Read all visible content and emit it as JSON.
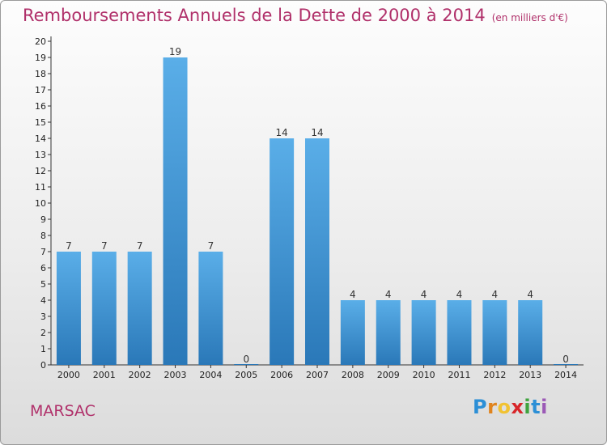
{
  "header": {
    "title": "Remboursements Annuels de la Dette de 2000 à 2014",
    "subtitle": "(en milliers d'€)"
  },
  "footer": {
    "commune": "MARSAC",
    "logo": [
      "P",
      "r",
      "o",
      "x",
      "i",
      "t",
      "i"
    ]
  },
  "colors": {
    "title": "#b0306a",
    "bar_light": "#5aaee8",
    "bar_dark": "#2a78b8"
  },
  "chart_data": {
    "type": "bar",
    "title": "Remboursements Annuels de la Dette de 2000 à 2014",
    "subtitle": "(en milliers d'€)",
    "categories": [
      "2000",
      "2001",
      "2002",
      "2003",
      "2004",
      "2005",
      "2006",
      "2007",
      "2008",
      "2009",
      "2010",
      "2011",
      "2012",
      "2013",
      "2014"
    ],
    "values": [
      7,
      7,
      7,
      19,
      7,
      0,
      14,
      14,
      4,
      4,
      4,
      4,
      4,
      4,
      0
    ],
    "data_labels": [
      "7",
      "7",
      "7",
      "19",
      "7",
      "0",
      "14",
      "14",
      "4",
      "4",
      "4",
      "4",
      "4",
      "4",
      "0"
    ],
    "ylim": [
      0,
      20
    ],
    "yticks": [
      0,
      1,
      2,
      3,
      4,
      5,
      6,
      7,
      8,
      9,
      10,
      11,
      12,
      13,
      14,
      15,
      16,
      17,
      18,
      19,
      20
    ],
    "grid": false,
    "legend": "none"
  }
}
